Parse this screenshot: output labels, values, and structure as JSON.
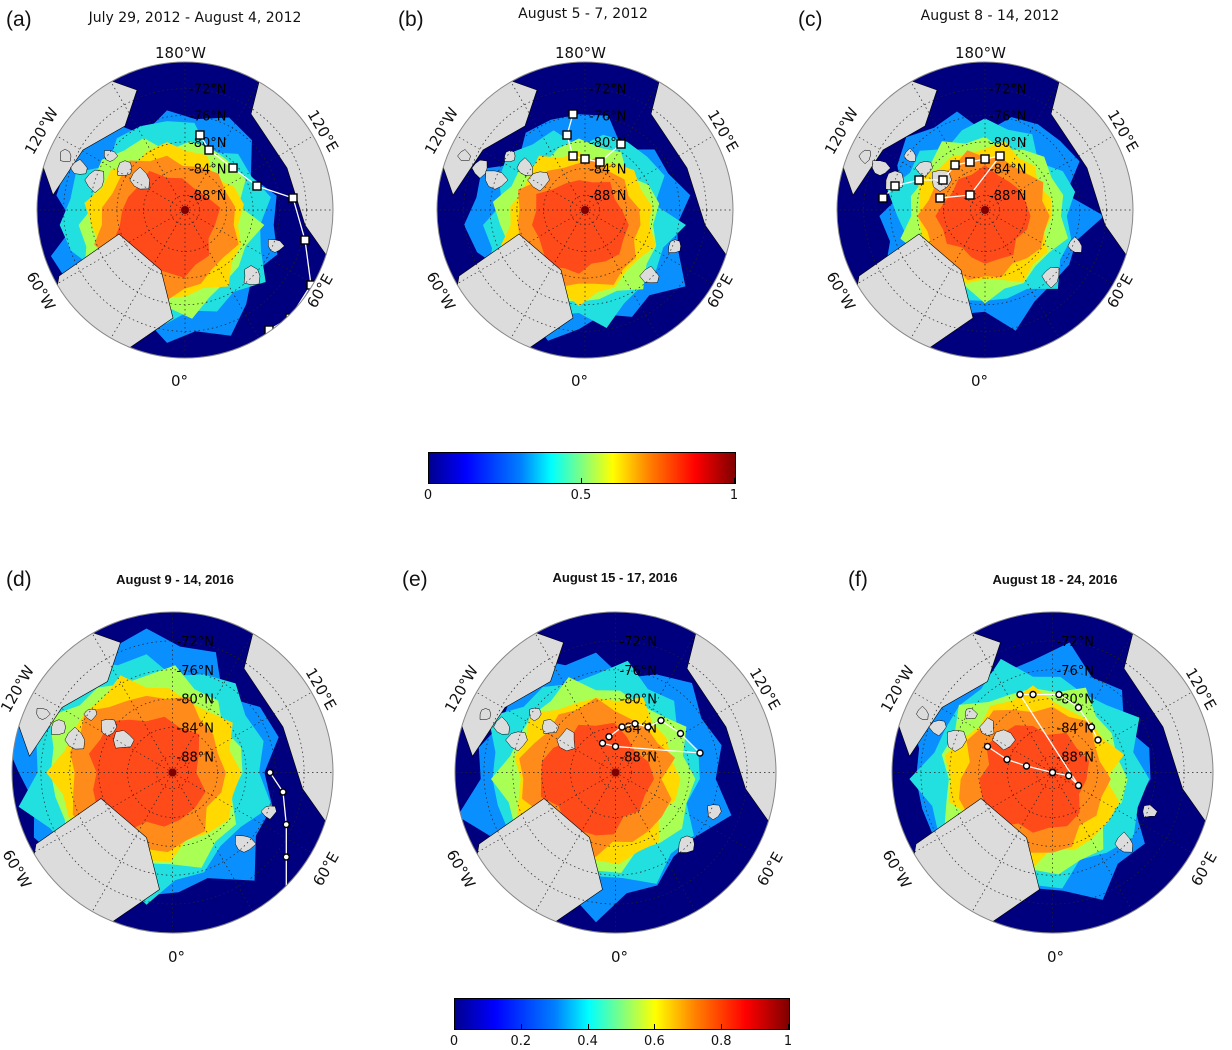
{
  "panels": [
    {
      "letter": "(a)",
      "title": "July 29, 2012 - August 4, 2012",
      "lat_labels": [
        "72°N",
        "76°N",
        "80°N",
        "84°N",
        "88°N"
      ],
      "lon_labels": {
        "top": "180°W",
        "left": "120°W",
        "right": "120°E",
        "bottom_left": "60°W",
        "bottom_right": "60°E",
        "bottom": "0°"
      }
    },
    {
      "letter": "(b)",
      "title": "August 5 - 7, 2012",
      "lat_labels": [
        "72°N",
        "76°N",
        "80°N",
        "84°N",
        "88°N"
      ],
      "lon_labels": {
        "top": "180°W",
        "left": "120°W",
        "right": "120°E",
        "bottom_left": "60°W",
        "bottom_right": "60°E",
        "bottom": "0°"
      }
    },
    {
      "letter": "(c)",
      "title": "August 8 - 14, 2012",
      "lat_labels": [
        "72°N",
        "76°N",
        "80°N",
        "84°N",
        "88°N"
      ],
      "lon_labels": {
        "top": "180°W",
        "left": "120°W",
        "right": "120°E",
        "bottom_left": "60°W",
        "bottom_right": "60°E",
        "bottom": "0°"
      }
    },
    {
      "letter": "(d)",
      "title": "August 9 - 14, 2016",
      "lat_labels": [
        "72°N",
        "76°N",
        "80°N",
        "84°N",
        "88°N"
      ],
      "lon_labels": {
        "top": "",
        "left": "120°W",
        "right": "120°E",
        "bottom_left": "60°W",
        "bottom_right": "60°E",
        "bottom": "0°"
      }
    },
    {
      "letter": "(e)",
      "title": "August 15 - 17, 2016",
      "lat_labels": [
        "72°N",
        "76°N",
        "80°N",
        "84°N",
        "88°N"
      ],
      "lon_labels": {
        "top": "",
        "left": "120°W",
        "right": "120°E",
        "bottom_left": "60°W",
        "bottom_right": "60°E",
        "bottom": "0°"
      }
    },
    {
      "letter": "(f)",
      "title": "August 18 - 24, 2016",
      "lat_labels": [
        "72°N",
        "76°N",
        "80°N",
        "84°N",
        "88°N"
      ],
      "lon_labels": {
        "top": "",
        "left": "120°W",
        "right": "120°E",
        "bottom_left": "60°W",
        "bottom_right": "60°E",
        "bottom": "0°"
      }
    }
  ],
  "colorbar_top": {
    "ticks": [
      "0",
      "0.5",
      "1"
    ],
    "tick_values": [
      0,
      0.5,
      1
    ]
  },
  "colorbar_bottom": {
    "ticks": [
      "0",
      "0.2",
      "0.4",
      "0.6",
      "0.8",
      "1"
    ],
    "tick_values": [
      0,
      0.2,
      0.4,
      0.6,
      0.8,
      1
    ]
  },
  "colors": {
    "ocean": "#00007f",
    "land": "#dcdcdc",
    "pole": "#7f0000"
  }
}
